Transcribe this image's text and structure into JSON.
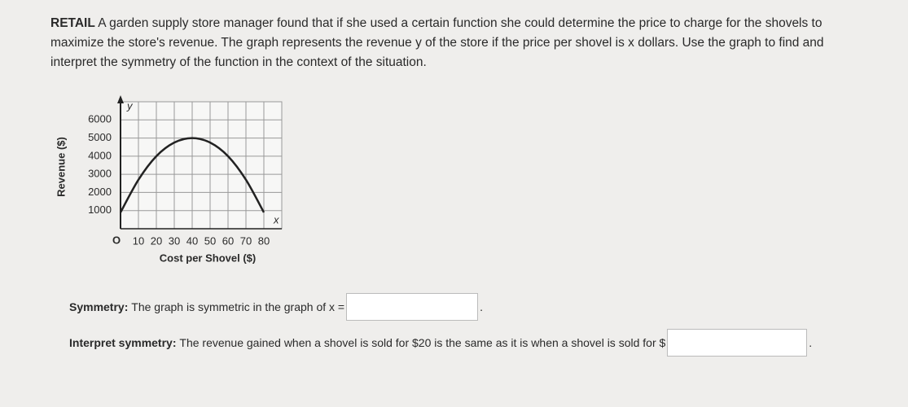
{
  "problem": {
    "label": "RETAIL",
    "lines": [
      "A garden supply store manager found that if she used a certain function she could determine the price to charge for the shovels to",
      "maximize the store's revenue. The graph represents the revenue y of the store if the price per shovel is x dollars. Use the graph to find and",
      "interpret the symmetry of the function in the context of the situation."
    ]
  },
  "chart_data": {
    "type": "line",
    "x_label": "Cost per Shovel ($)",
    "y_label": "Revenue ($)",
    "x_axis_name": "x",
    "y_axis_name": "y",
    "origin_label": "O",
    "x": [
      0,
      10,
      20,
      30,
      40,
      50,
      60,
      70,
      80
    ],
    "values": [
      900,
      2700,
      4000,
      4750,
      5000,
      4750,
      4000,
      2700,
      900
    ],
    "color": "#222222",
    "xlim": [
      0,
      90
    ],
    "ylim": [
      0,
      7000
    ],
    "xticks": [
      10,
      20,
      30,
      40,
      50,
      60,
      70,
      80
    ],
    "yticks": [
      1000,
      2000,
      3000,
      4000,
      5000,
      6000
    ],
    "grid": true
  },
  "symmetry": {
    "label": "Symmetry:",
    "text": "The graph is symmetric in the graph of x =",
    "end": "."
  },
  "interpret": {
    "label": "Interpret symmetry:",
    "text": "The revenue gained when a shovel is sold for $20 is the same as it is when a shovel is sold for $",
    "end": "."
  }
}
